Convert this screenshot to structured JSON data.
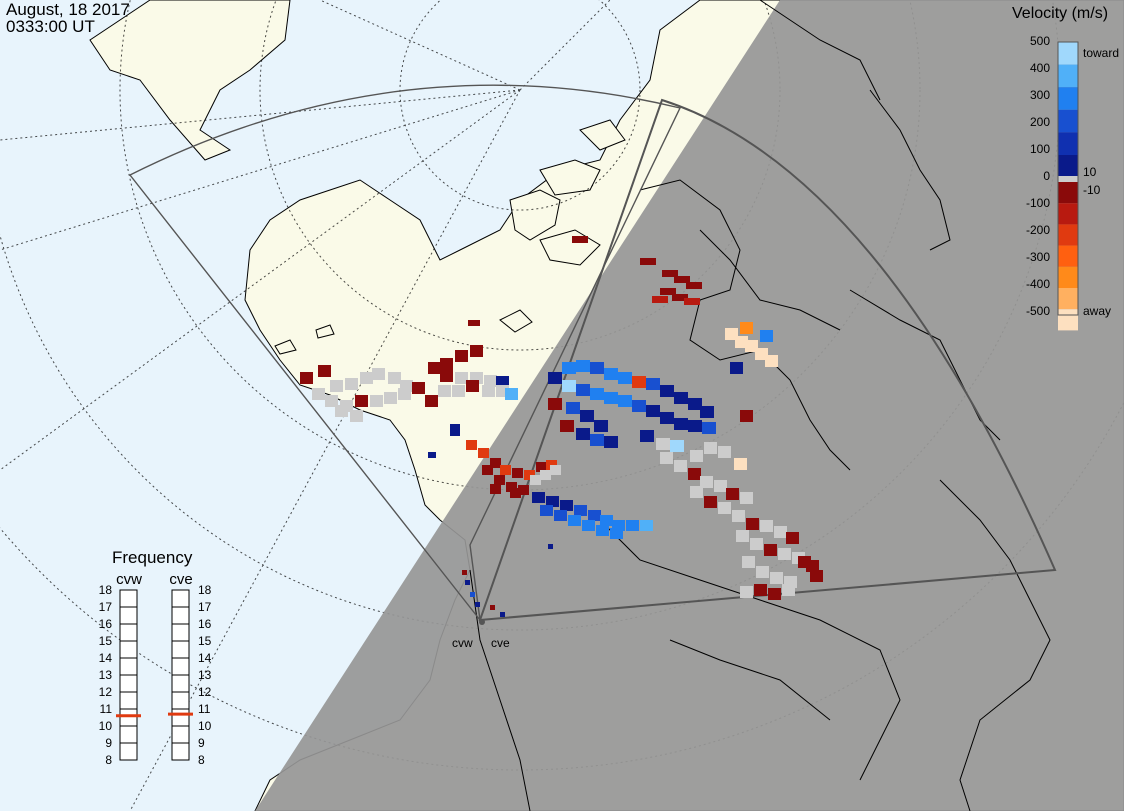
{
  "header": {
    "date": "August, 18 2017",
    "time": "0333:00 UT"
  },
  "colorbar": {
    "title": "Velocity (m/s)",
    "ticks": [
      "500",
      "400",
      "300",
      "200",
      "100",
      "10",
      "0",
      "-10",
      "-100",
      "-200",
      "-300",
      "-400",
      "-500"
    ],
    "toward_label": "toward",
    "away_label": "away",
    "colors": [
      "#fde0c0",
      "#ffb060",
      "#ff8a1a",
      "#ff6010",
      "#e03a10",
      "#b81a10",
      "#8a0a0a",
      "#cccccc",
      "#0a1a8a",
      "#1030b0",
      "#1850d0",
      "#2080f0",
      "#50b0f8",
      "#a0d8fc"
    ]
  },
  "frequency": {
    "title": "Frequency",
    "radars": [
      {
        "name": "cvw",
        "freq_mhz": 10.6
      },
      {
        "name": "cve",
        "freq_mhz": 10.7
      }
    ],
    "scale": [
      "18",
      "17",
      "16",
      "15",
      "14",
      "13",
      "12",
      "11",
      "10",
      "9",
      "8"
    ],
    "marker_color": "#e03a10"
  },
  "radar_sites": [
    "cvw",
    "cve"
  ],
  "map": {
    "colors": {
      "ocean_day": "#e8f4fc",
      "land_day": "#fafae8",
      "night": "#969696",
      "coast": "#000000",
      "fov": "#555555"
    }
  }
}
